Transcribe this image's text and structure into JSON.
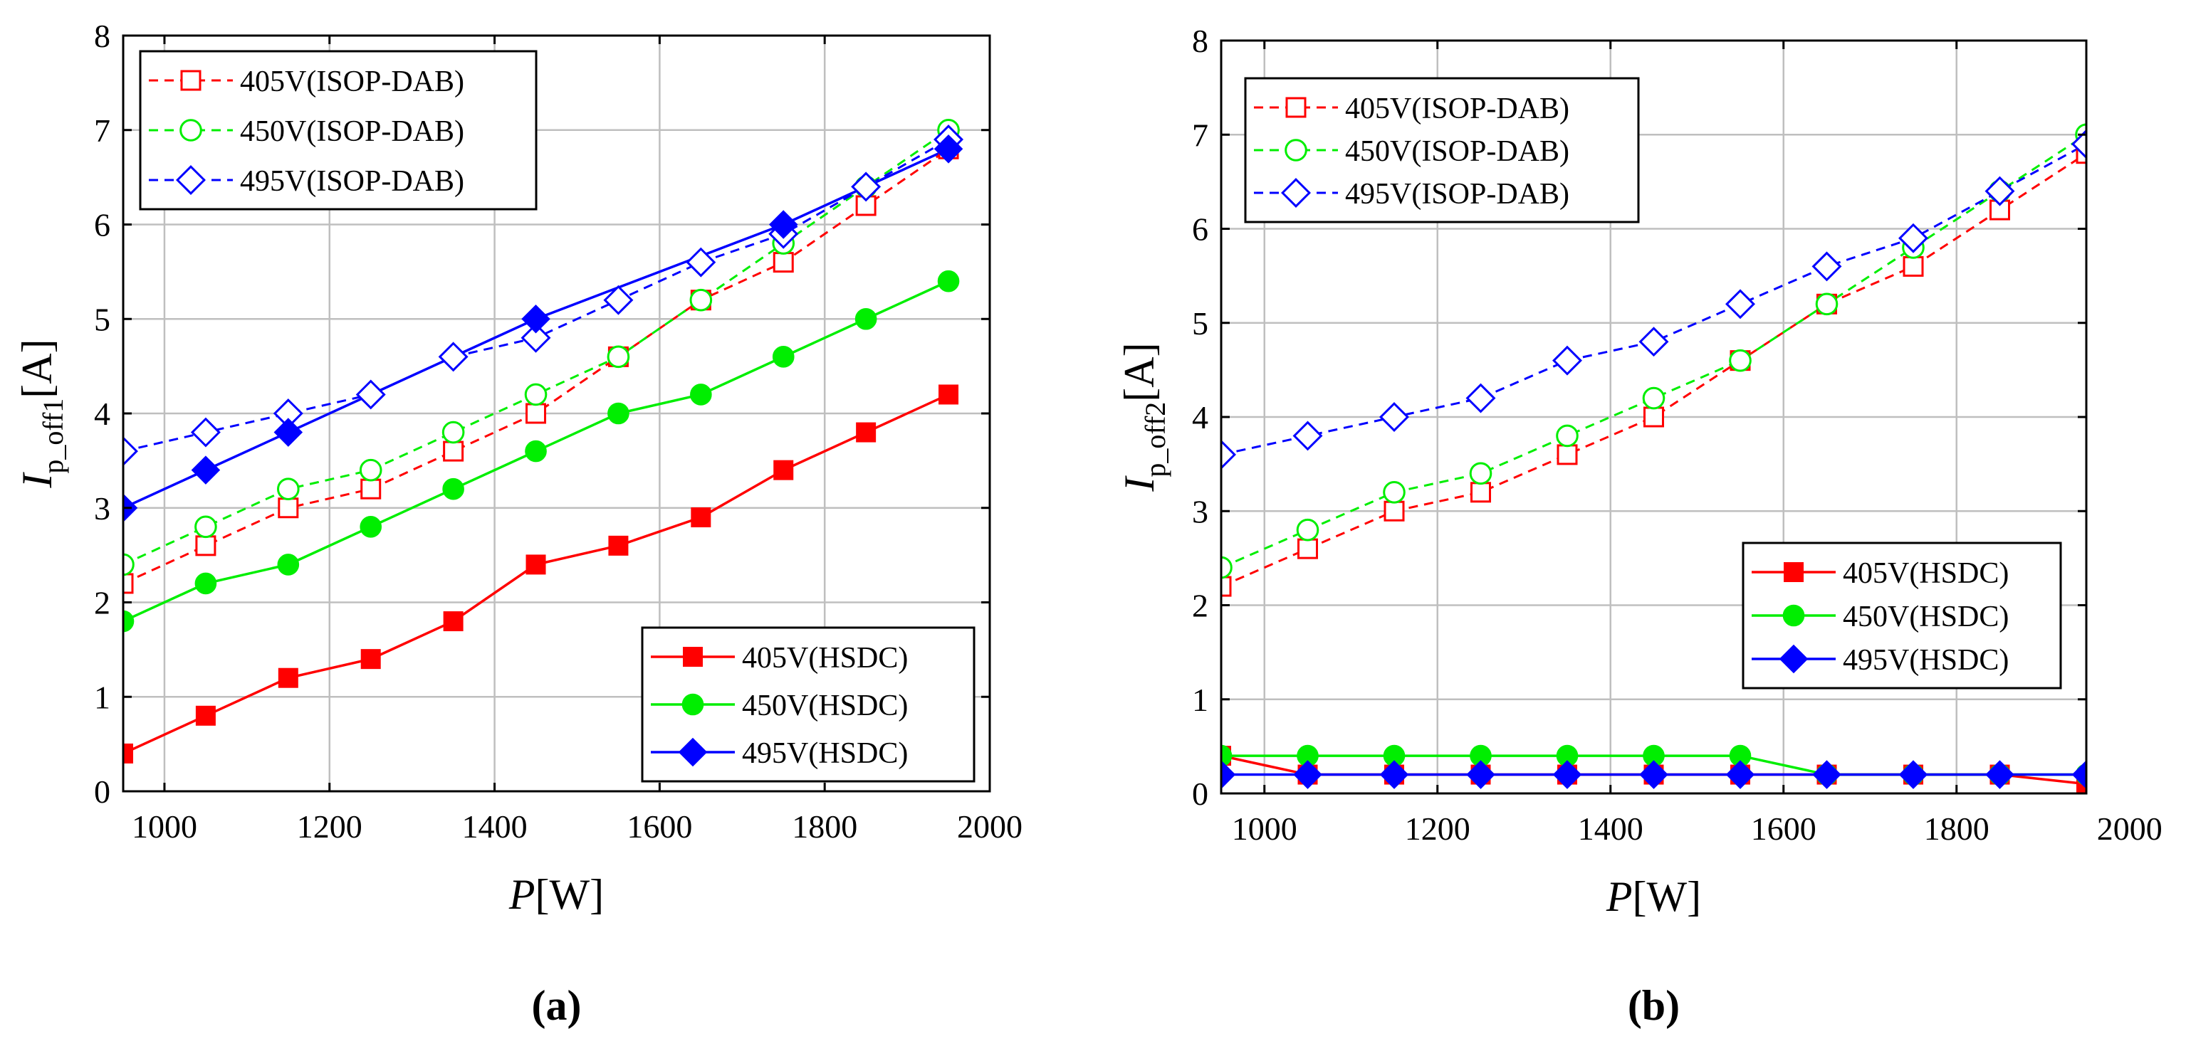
{
  "chart_data": [
    {
      "type": "line",
      "panel_label": "(a)",
      "xlabel_var": "P",
      "xlabel_unit": "[W]",
      "ylabel_var": "I",
      "ylabel_sub": "p_off1",
      "ylabel_unit": "[A]",
      "xlim": [
        950,
        2000
      ],
      "ylim": [
        0,
        8
      ],
      "xticks": [
        1000,
        1200,
        1400,
        1600,
        1800,
        2000
      ],
      "yticks": [
        0,
        1,
        2,
        3,
        4,
        5,
        6,
        7,
        8
      ],
      "grid": true,
      "legends": [
        {
          "placement": "top-left",
          "series": [
            0,
            1,
            2
          ]
        },
        {
          "placement": "bottom-right",
          "series": [
            3,
            4,
            5
          ]
        }
      ],
      "series": [
        {
          "name": "405V(ISOP-DAB)",
          "color": "#ff0000",
          "line": "dashed",
          "marker": "square",
          "filled": false,
          "x": [
            950,
            1050,
            1150,
            1250,
            1350,
            1450,
            1550,
            1650,
            1750,
            1850,
            1950
          ],
          "y": [
            2.2,
            2.6,
            3.0,
            3.2,
            3.6,
            4.0,
            4.6,
            5.2,
            5.6,
            6.2,
            6.8
          ]
        },
        {
          "name": "450V(ISOP-DAB)",
          "color": "#00ee00",
          "line": "dashed",
          "marker": "circle",
          "filled": false,
          "x": [
            950,
            1050,
            1150,
            1250,
            1350,
            1450,
            1550,
            1650,
            1750,
            1850,
            1950
          ],
          "y": [
            2.4,
            2.8,
            3.2,
            3.4,
            3.8,
            4.2,
            4.6,
            5.2,
            5.8,
            6.4,
            7.0
          ]
        },
        {
          "name": "495V(ISOP-DAB)",
          "color": "#0000ff",
          "line": "dashed",
          "marker": "diamond",
          "filled": false,
          "x": [
            950,
            1050,
            1150,
            1250,
            1350,
            1450,
            1550,
            1650,
            1750,
            1850,
            1950
          ],
          "y": [
            3.6,
            3.8,
            4.0,
            4.2,
            4.6,
            4.8,
            5.2,
            5.6,
            5.9,
            6.4,
            6.9
          ]
        },
        {
          "name": "405V(HSDC)",
          "color": "#ff0000",
          "line": "solid",
          "marker": "square",
          "filled": true,
          "x": [
            950,
            1050,
            1150,
            1250,
            1350,
            1450,
            1550,
            1650,
            1750,
            1850,
            1950
          ],
          "y": [
            0.4,
            0.8,
            1.2,
            1.4,
            1.8,
            2.4,
            2.6,
            2.9,
            3.4,
            3.8,
            4.2
          ]
        },
        {
          "name": "450V(HSDC)",
          "color": "#00ee00",
          "line": "solid",
          "marker": "circle",
          "filled": true,
          "x": [
            950,
            1050,
            1150,
            1250,
            1350,
            1450,
            1550,
            1650,
            1750,
            1850,
            1950
          ],
          "y": [
            1.8,
            2.2,
            2.4,
            2.8,
            3.2,
            3.6,
            4.0,
            4.2,
            4.6,
            5.0,
            5.4
          ]
        },
        {
          "name": "495V(HSDC)",
          "color": "#0000ff",
          "line": "solid",
          "marker": "diamond",
          "filled": true,
          "x": [
            950,
            1050,
            1150,
            1450,
            1750,
            1950
          ],
          "y": [
            3.0,
            3.4,
            3.8,
            5.0,
            6.0,
            6.8
          ]
        }
      ]
    },
    {
      "type": "line",
      "panel_label": "(b)",
      "xlabel_var": "P",
      "xlabel_unit": "[W]",
      "ylabel_var": "I",
      "ylabel_sub": "p_off2",
      "ylabel_unit": "[A]",
      "xlim": [
        950,
        1950
      ],
      "ylim": [
        0,
        8
      ],
      "xticks": [
        1000,
        1200,
        1400,
        1600,
        1800,
        2000
      ],
      "yticks": [
        0,
        1,
        2,
        3,
        4,
        5,
        6,
        7,
        8
      ],
      "grid": true,
      "legends": [
        {
          "placement": "top-left",
          "series": [
            0,
            1,
            2
          ]
        },
        {
          "placement": "bottom-right",
          "series": [
            3,
            4,
            5
          ]
        }
      ],
      "series": [
        {
          "name": "405V(ISOP-DAB)",
          "color": "#ff0000",
          "line": "dashed",
          "marker": "square",
          "filled": false,
          "x": [
            950,
            1050,
            1150,
            1250,
            1350,
            1450,
            1550,
            1650,
            1750,
            1850,
            1950
          ],
          "y": [
            2.2,
            2.6,
            3.0,
            3.2,
            3.6,
            4.0,
            4.6,
            5.2,
            5.6,
            6.2,
            6.8
          ]
        },
        {
          "name": "450V(ISOP-DAB)",
          "color": "#00ee00",
          "line": "dashed",
          "marker": "circle",
          "filled": false,
          "x": [
            950,
            1050,
            1150,
            1250,
            1350,
            1450,
            1550,
            1650,
            1750,
            1850,
            1950
          ],
          "y": [
            2.4,
            2.8,
            3.2,
            3.4,
            3.8,
            4.2,
            4.6,
            5.2,
            5.8,
            6.4,
            7.0
          ]
        },
        {
          "name": "495V(ISOP-DAB)",
          "color": "#0000ff",
          "line": "dashed",
          "marker": "diamond",
          "filled": false,
          "x": [
            950,
            1050,
            1150,
            1250,
            1350,
            1450,
            1550,
            1650,
            1750,
            1850,
            1950
          ],
          "y": [
            3.6,
            3.8,
            4.0,
            4.2,
            4.6,
            4.8,
            5.2,
            5.6,
            5.9,
            6.4,
            6.9
          ]
        },
        {
          "name": "405V(HSDC)",
          "color": "#ff0000",
          "line": "solid",
          "marker": "square",
          "filled": true,
          "x": [
            950,
            1050,
            1150,
            1250,
            1350,
            1450,
            1550,
            1650,
            1750,
            1850,
            1950
          ],
          "y": [
            0.4,
            0.2,
            0.2,
            0.2,
            0.2,
            0.2,
            0.2,
            0.2,
            0.2,
            0.2,
            0.1
          ]
        },
        {
          "name": "450V(HSDC)",
          "color": "#00ee00",
          "line": "solid",
          "marker": "circle",
          "filled": true,
          "x": [
            950,
            1050,
            1150,
            1250,
            1350,
            1450,
            1550,
            1650,
            1750,
            1850,
            1950
          ],
          "y": [
            0.4,
            0.4,
            0.4,
            0.4,
            0.4,
            0.4,
            0.4,
            0.2,
            0.2,
            0.2,
            0.2
          ]
        },
        {
          "name": "495V(HSDC)",
          "color": "#0000ff",
          "line": "solid",
          "marker": "diamond",
          "filled": true,
          "x": [
            950,
            1050,
            1150,
            1250,
            1350,
            1450,
            1550,
            1650,
            1750,
            1850,
            1950
          ],
          "y": [
            0.2,
            0.2,
            0.2,
            0.2,
            0.2,
            0.2,
            0.2,
            0.2,
            0.2,
            0.2,
            0.2
          ]
        }
      ]
    }
  ]
}
